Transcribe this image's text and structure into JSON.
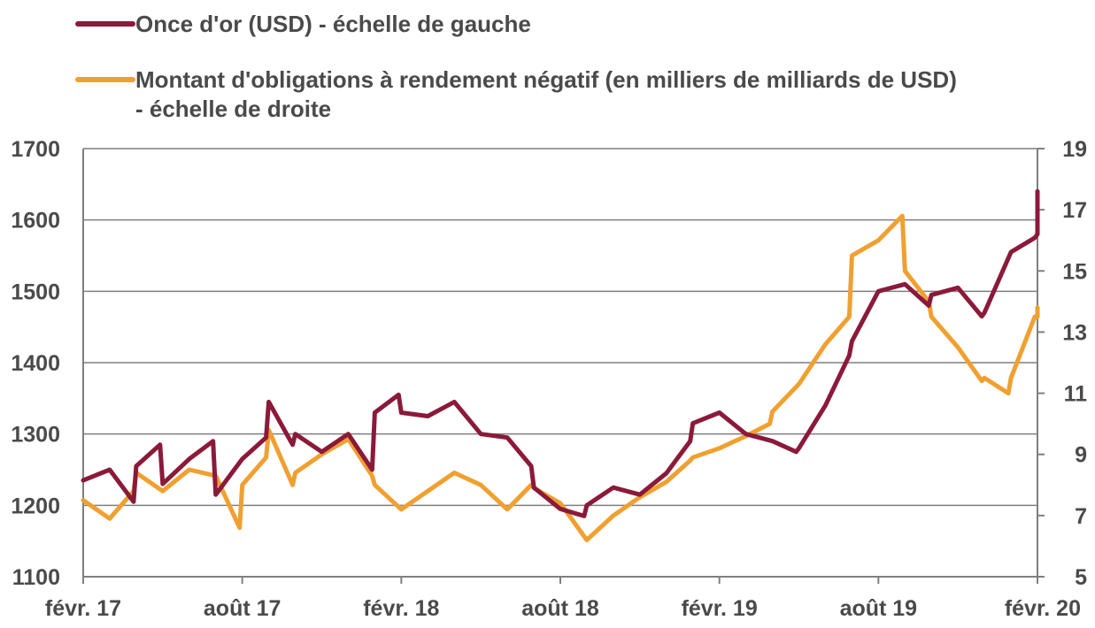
{
  "chart_data": {
    "type": "line",
    "title": "",
    "xlabel": "",
    "ylabel_left": "",
    "ylabel_right": "",
    "x_tick_labels": [
      "févr. 17",
      "août 17",
      "févr. 18",
      "août 18",
      "févr. 19",
      "août 19",
      "févr. 20"
    ],
    "y_left": {
      "ticks": [
        1100,
        1200,
        1300,
        1400,
        1500,
        1600,
        1700
      ],
      "lim": [
        1100,
        1700
      ]
    },
    "y_right": {
      "ticks": [
        5,
        7,
        9,
        11,
        13,
        15,
        17,
        19
      ],
      "lim": [
        5,
        19
      ]
    },
    "grid": "horizontal",
    "legend_position": "top-left",
    "series": [
      {
        "name": "Once d'or (USD) - échelle de gauche",
        "legend_lines": [
          "Once d'or (USD) - échelle de gauche"
        ],
        "axis": "left",
        "color": "#8b1a3a",
        "points": [
          [
            "févr. 17",
            1235
          ],
          [
            "mars 17",
            1250
          ],
          [
            "mars 17",
            1205
          ],
          [
            "avr. 17",
            1255
          ],
          [
            "avr. 17",
            1285
          ],
          [
            "mai 17",
            1230
          ],
          [
            "juin 17",
            1265
          ],
          [
            "juin 17",
            1290
          ],
          [
            "juil. 17",
            1215
          ],
          [
            "août 17",
            1265
          ],
          [
            "août 17",
            1295
          ],
          [
            "sept. 17",
            1345
          ],
          [
            "sept. 17",
            1285
          ],
          [
            "oct. 17",
            1300
          ],
          [
            "nov. 17",
            1275
          ],
          [
            "déc. 17",
            1300
          ],
          [
            "déc. 17",
            1250
          ],
          [
            "janv. 18",
            1330
          ],
          [
            "janv. 18",
            1355
          ],
          [
            "févr. 18",
            1330
          ],
          [
            "mars 18",
            1325
          ],
          [
            "avr. 18",
            1345
          ],
          [
            "mai 18",
            1300
          ],
          [
            "juin 18",
            1295
          ],
          [
            "juin 18",
            1255
          ],
          [
            "juil. 18",
            1225
          ],
          [
            "août 18",
            1195
          ],
          [
            "août 18",
            1185
          ],
          [
            "sept. 18",
            1200
          ],
          [
            "oct. 18",
            1225
          ],
          [
            "nov. 18",
            1215
          ],
          [
            "déc. 18",
            1245
          ],
          [
            "déc. 18",
            1290
          ],
          [
            "janv. 19",
            1315
          ],
          [
            "févr. 19",
            1330
          ],
          [
            "mars 19",
            1300
          ],
          [
            "avr. 19",
            1290
          ],
          [
            "avr. 19",
            1275
          ],
          [
            "mai 19",
            1280
          ],
          [
            "juin 19",
            1340
          ],
          [
            "juin 19",
            1410
          ],
          [
            "juil. 19",
            1430
          ],
          [
            "août 19",
            1500
          ],
          [
            "sept. 19",
            1510
          ],
          [
            "sept. 19",
            1480
          ],
          [
            "oct. 19",
            1495
          ],
          [
            "nov. 19",
            1505
          ],
          [
            "nov. 19",
            1465
          ],
          [
            "déc. 19",
            1470
          ],
          [
            "janv. 20",
            1555
          ],
          [
            "janv. 20",
            1575
          ],
          [
            "févr. 20",
            1580
          ],
          [
            "févr. 20",
            1640
          ]
        ]
      },
      {
        "name": "Montant d'obligations à rendement négatif (en milliers de milliards de USD) - échelle de droite",
        "legend_lines": [
          "Montant d'obligations à rendement négatif (en milliers de milliards de USD)",
          "- échelle de droite"
        ],
        "axis": "right",
        "color": "#f0a030",
        "points": [
          [
            "févr. 17",
            7.5
          ],
          [
            "mars 17",
            6.9
          ],
          [
            "mars 17",
            7.8
          ],
          [
            "avr. 17",
            8.4
          ],
          [
            "mai 17",
            7.8
          ],
          [
            "juin 17",
            8.5
          ],
          [
            "juil. 17",
            8.3
          ],
          [
            "juil. 17",
            6.6
          ],
          [
            "août 17",
            8.0
          ],
          [
            "août 17",
            8.9
          ],
          [
            "sept. 17",
            9.8
          ],
          [
            "sept. 17",
            8.0
          ],
          [
            "oct. 17",
            8.4
          ],
          [
            "nov. 17",
            9.0
          ],
          [
            "déc. 17",
            9.5
          ],
          [
            "déc. 17",
            8.3
          ],
          [
            "janv. 18",
            8.0
          ],
          [
            "févr. 18",
            7.2
          ],
          [
            "mars 18",
            7.8
          ],
          [
            "avr. 18",
            8.4
          ],
          [
            "mai 18",
            8.0
          ],
          [
            "juin 18",
            7.2
          ],
          [
            "juin 18",
            8.0
          ],
          [
            "juil. 18",
            7.9
          ],
          [
            "août 18",
            7.4
          ],
          [
            "sept. 18",
            6.2
          ],
          [
            "oct. 18",
            7.0
          ],
          [
            "nov. 18",
            7.6
          ],
          [
            "déc. 18",
            8.1
          ],
          [
            "déc. 18",
            8.8
          ],
          [
            "janv. 19",
            8.9
          ],
          [
            "févr. 19",
            9.2
          ],
          [
            "mars 19",
            9.6
          ],
          [
            "mars 19",
            10.0
          ],
          [
            "avr. 19",
            10.4
          ],
          [
            "mai 19",
            11.3
          ],
          [
            "juin 19",
            12.6
          ],
          [
            "juin 19",
            13.5
          ],
          [
            "juil. 19",
            15.5
          ],
          [
            "août 19",
            16.0
          ],
          [
            "août 19",
            16.8
          ],
          [
            "sept. 19",
            15.0
          ],
          [
            "sept. 19",
            14.0
          ],
          [
            "oct. 19",
            13.5
          ],
          [
            "nov. 19",
            12.5
          ],
          [
            "nov. 19",
            11.4
          ],
          [
            "déc. 19",
            11.5
          ],
          [
            "déc. 19",
            11.0
          ],
          [
            "janv. 20",
            11.5
          ],
          [
            "janv. 20",
            13.5
          ],
          [
            "févr. 20",
            13.5
          ],
          [
            "févr. 20",
            13.8
          ]
        ]
      }
    ]
  }
}
